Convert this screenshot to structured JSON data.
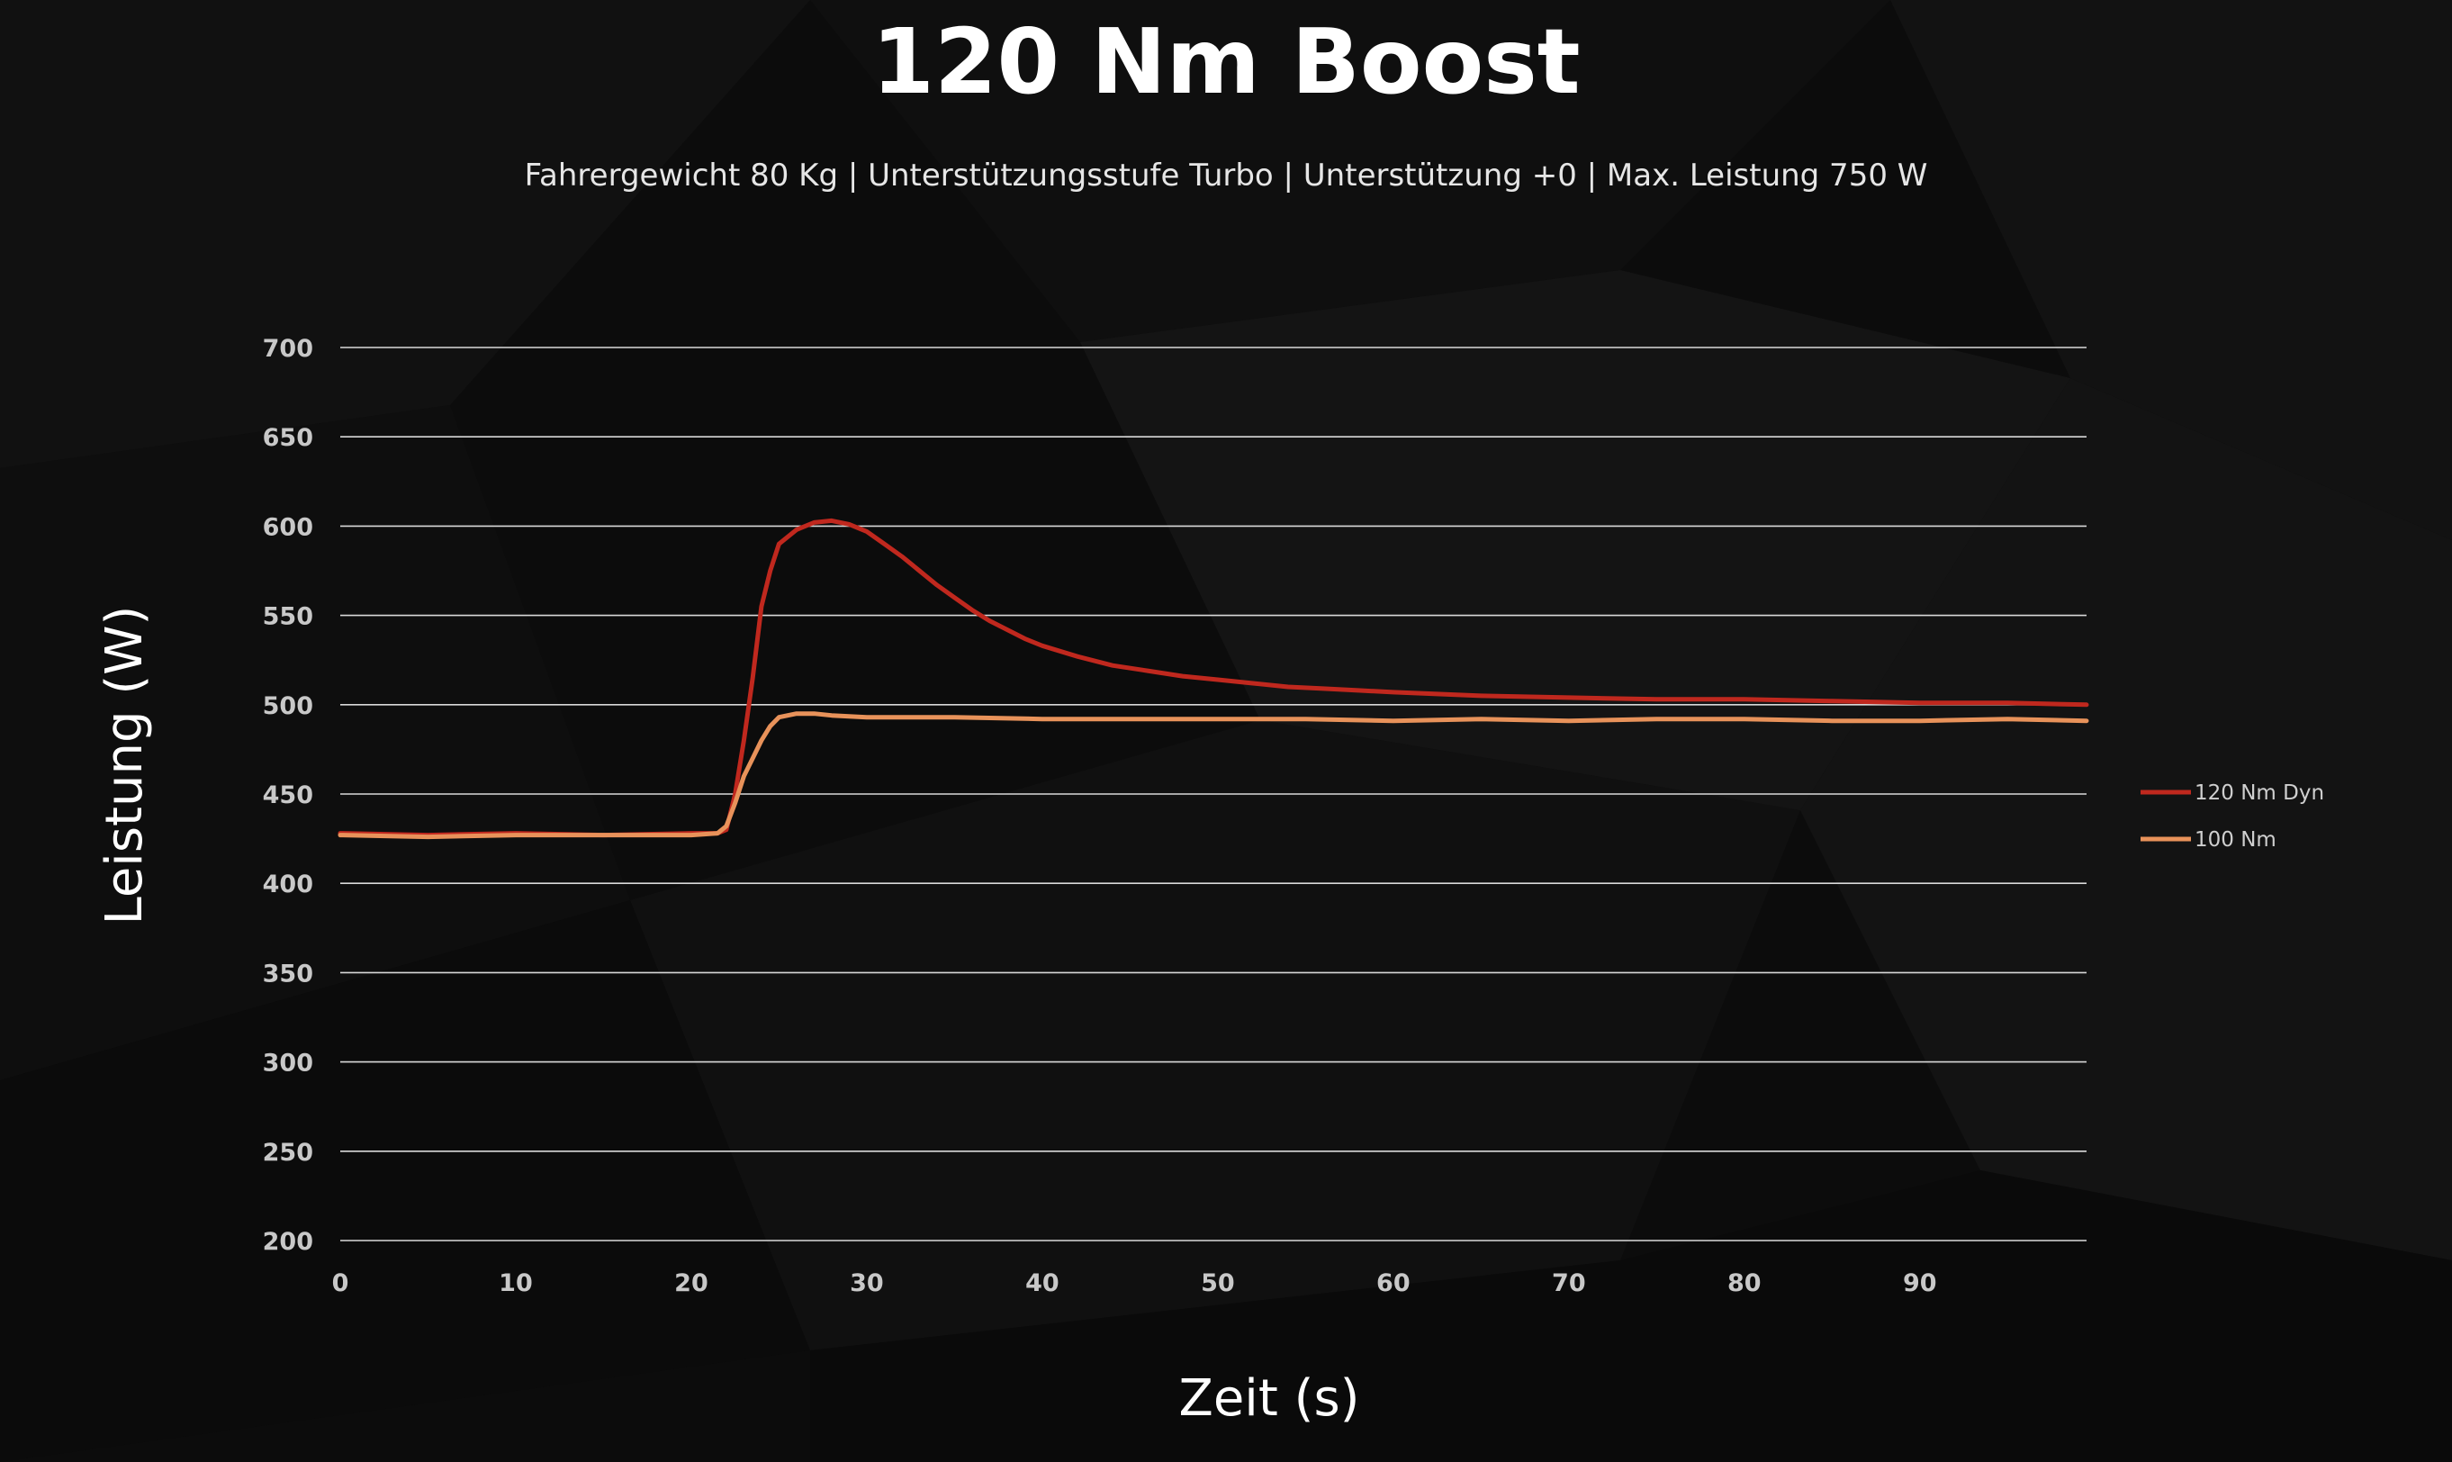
{
  "chart_data": {
    "type": "line",
    "title": "120 Nm Boost",
    "subtitle": "Fahrergewicht 80 Kg | Unterstützungsstufe Turbo | Unterstützung +0 | Max. Leistung 750 W",
    "xlabel": "Zeit (s)",
    "ylabel": "Leistung (W)",
    "xlim": [
      0,
      99.5
    ],
    "ylim": [
      200,
      700
    ],
    "x_ticks": [
      0,
      10,
      20,
      30,
      40,
      50,
      60,
      70,
      80,
      90
    ],
    "y_ticks": [
      200,
      250,
      300,
      350,
      400,
      450,
      500,
      550,
      600,
      650,
      700
    ],
    "grid": true,
    "legend_position": "right",
    "series": [
      {
        "name": "120 Nm Dyn",
        "color": "#c0281e",
        "points": [
          [
            0,
            428
          ],
          [
            5,
            427
          ],
          [
            10,
            428
          ],
          [
            15,
            427
          ],
          [
            20,
            428
          ],
          [
            21.5,
            428
          ],
          [
            22,
            430
          ],
          [
            22.5,
            450
          ],
          [
            23,
            480
          ],
          [
            23.5,
            515
          ],
          [
            24,
            555
          ],
          [
            24.5,
            575
          ],
          [
            25,
            590
          ],
          [
            26,
            598
          ],
          [
            27,
            602
          ],
          [
            28,
            603
          ],
          [
            29,
            601
          ],
          [
            30,
            597
          ],
          [
            31,
            590
          ],
          [
            32,
            583
          ],
          [
            33,
            575
          ],
          [
            34,
            567
          ],
          [
            35,
            560
          ],
          [
            36,
            553
          ],
          [
            37,
            547
          ],
          [
            38,
            542
          ],
          [
            39,
            537
          ],
          [
            40,
            533
          ],
          [
            42,
            527
          ],
          [
            44,
            522
          ],
          [
            46,
            519
          ],
          [
            48,
            516
          ],
          [
            50,
            514
          ],
          [
            52,
            512
          ],
          [
            54,
            510
          ],
          [
            56,
            509
          ],
          [
            58,
            508
          ],
          [
            60,
            507
          ],
          [
            65,
            505
          ],
          [
            70,
            504
          ],
          [
            75,
            503
          ],
          [
            80,
            503
          ],
          [
            85,
            502
          ],
          [
            90,
            501
          ],
          [
            95,
            501
          ],
          [
            99.5,
            500
          ]
        ]
      },
      {
        "name": "100 Nm",
        "color": "#e8925a",
        "points": [
          [
            0,
            427
          ],
          [
            5,
            426
          ],
          [
            10,
            427
          ],
          [
            15,
            427
          ],
          [
            20,
            427
          ],
          [
            21.5,
            428
          ],
          [
            22,
            432
          ],
          [
            22.5,
            445
          ],
          [
            23,
            460
          ],
          [
            23.5,
            470
          ],
          [
            24,
            480
          ],
          [
            24.5,
            488
          ],
          [
            25,
            493
          ],
          [
            26,
            495
          ],
          [
            27,
            495
          ],
          [
            28,
            494
          ],
          [
            30,
            493
          ],
          [
            35,
            493
          ],
          [
            40,
            492
          ],
          [
            45,
            492
          ],
          [
            50,
            492
          ],
          [
            55,
            492
          ],
          [
            60,
            491
          ],
          [
            65,
            492
          ],
          [
            70,
            491
          ],
          [
            75,
            492
          ],
          [
            80,
            492
          ],
          [
            85,
            491
          ],
          [
            90,
            491
          ],
          [
            95,
            492
          ],
          [
            99.5,
            491
          ]
        ]
      }
    ]
  }
}
